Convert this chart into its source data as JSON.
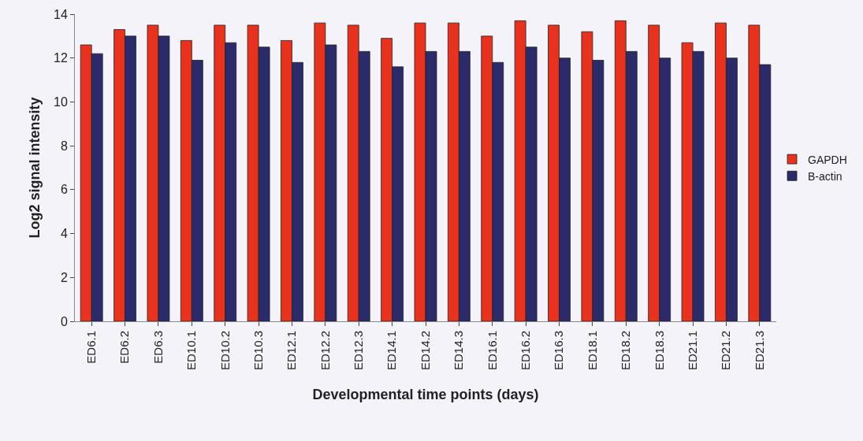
{
  "chart_data": {
    "type": "bar",
    "xlabel": "Developmental time points (days)",
    "ylabel": "Log2 signal intensity",
    "categories": [
      "ED6.1",
      "ED6.2",
      "ED6.3",
      "ED10.1",
      "ED10.2",
      "ED10.3",
      "ED12.1",
      "ED12.2",
      "ED12.3",
      "ED14.1",
      "ED14.2",
      "ED14.3",
      "ED16.1",
      "ED16.2",
      "ED16.3",
      "ED18.1",
      "ED18.2",
      "ED18.3",
      "ED21.1",
      "ED21.2",
      "ED21.3"
    ],
    "series": [
      {
        "name": "GAPDH",
        "color": "#e8321e",
        "values": [
          12.6,
          13.3,
          13.5,
          12.8,
          13.5,
          13.5,
          12.8,
          13.6,
          13.5,
          12.9,
          13.6,
          13.6,
          13.0,
          13.7,
          13.5,
          13.2,
          13.7,
          13.5,
          12.7,
          13.6,
          13.5
        ]
      },
      {
        "name": "B-actin",
        "color": "#2b2a6b",
        "values": [
          12.2,
          13.0,
          13.0,
          11.9,
          12.7,
          12.5,
          11.8,
          12.6,
          12.3,
          11.6,
          12.3,
          12.3,
          11.8,
          12.5,
          12.0,
          11.9,
          12.3,
          12.0,
          12.3,
          12.0,
          11.7
        ]
      }
    ],
    "ylim": [
      0,
      14
    ],
    "yticks": [
      0,
      2,
      4,
      6,
      8,
      10,
      12,
      14
    ],
    "grid": false,
    "legend": "right"
  }
}
